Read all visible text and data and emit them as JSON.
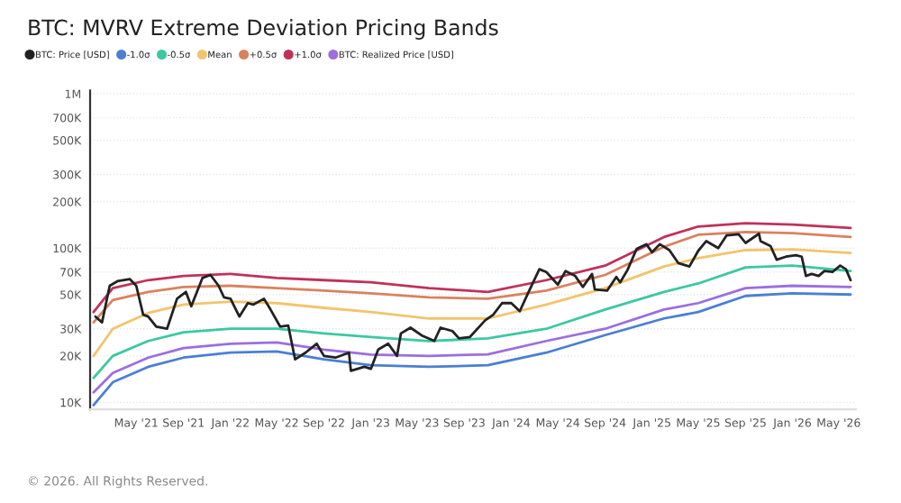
{
  "chart_data": {
    "type": "line",
    "title": "BTC: MVRV Extreme Deviation Pricing Bands",
    "annotations": [
      "© 2026. All Rights Reserved."
    ],
    "log": "y",
    "grid": "y",
    "legend": "top left",
    "marker": "none",
    "line_style": "solid",
    "ylim": [
      9000,
      1050000
    ],
    "yticks": [
      {
        "value": 10000,
        "label": "10K"
      },
      {
        "value": 20000,
        "label": "20K"
      },
      {
        "value": 30000,
        "label": "30K"
      },
      {
        "value": 50000,
        "label": "50K"
      },
      {
        "value": 70000,
        "label": "70K"
      },
      {
        "value": 100000,
        "label": "100K"
      },
      {
        "value": 200000,
        "label": "200K"
      },
      {
        "value": 300000,
        "label": "300K"
      },
      {
        "value": 500000,
        "label": "500K"
      },
      {
        "value": 700000,
        "label": "700K"
      },
      {
        "value": 1000000,
        "label": "1M"
      }
    ],
    "xlim": [
      "2021-01-01",
      "2026-06-15"
    ],
    "xticks": [
      {
        "value": "2021-05-01",
        "label": "May '21"
      },
      {
        "value": "2021-09-01",
        "label": "Sep '21"
      },
      {
        "value": "2022-01-01",
        "label": "Jan '22"
      },
      {
        "value": "2022-05-01",
        "label": "May '22"
      },
      {
        "value": "2022-09-01",
        "label": "Sep '22"
      },
      {
        "value": "2023-01-01",
        "label": "Jan '23"
      },
      {
        "value": "2023-05-01",
        "label": "May '23"
      },
      {
        "value": "2023-09-01",
        "label": "Sep '23"
      },
      {
        "value": "2024-01-01",
        "label": "Jan '24"
      },
      {
        "value": "2024-05-01",
        "label": "May '24"
      },
      {
        "value": "2024-09-01",
        "label": "Sep '24"
      },
      {
        "value": "2025-01-01",
        "label": "Jan '25"
      },
      {
        "value": "2025-05-01",
        "label": "May '25"
      },
      {
        "value": "2025-09-01",
        "label": "Sep '25"
      },
      {
        "value": "2026-01-01",
        "label": "Jan '26"
      },
      {
        "value": "2026-05-01",
        "label": "May '26"
      }
    ],
    "x": [
      "2021-01-10",
      "2021-03-01",
      "2021-06-01",
      "2021-09-01",
      "2022-01-01",
      "2022-05-01",
      "2022-09-01",
      "2023-01-01",
      "2023-06-01",
      "2023-11-01",
      "2024-04-01",
      "2024-09-01",
      "2025-02-01",
      "2025-05-01",
      "2025-09-01",
      "2026-01-01",
      "2026-06-01"
    ],
    "series": [
      {
        "name": "BTC: Price [USD]",
        "color": "#222222",
        "x": [
          "2021-01-15",
          "2021-02-01",
          "2021-02-21",
          "2021-03-13",
          "2021-04-14",
          "2021-05-01",
          "2021-05-19",
          "2021-06-01",
          "2021-06-22",
          "2021-07-20",
          "2021-08-15",
          "2021-09-07",
          "2021-09-21",
          "2021-10-20",
          "2021-11-10",
          "2021-12-01",
          "2021-12-15",
          "2022-01-01",
          "2022-01-24",
          "2022-02-15",
          "2022-03-01",
          "2022-03-29",
          "2022-04-15",
          "2022-05-10",
          "2022-05-31",
          "2022-06-18",
          "2022-07-15",
          "2022-08-13",
          "2022-09-01",
          "2022-10-01",
          "2022-11-05",
          "2022-11-10",
          "2022-12-15",
          "2023-01-01",
          "2023-01-20",
          "2023-02-15",
          "2023-03-10",
          "2023-03-20",
          "2023-04-14",
          "2023-05-15",
          "2023-06-15",
          "2023-07-01",
          "2023-08-01",
          "2023-08-18",
          "2023-09-15",
          "2023-10-25",
          "2023-11-15",
          "2023-12-08",
          "2024-01-01",
          "2024-01-23",
          "2024-02-15",
          "2024-03-14",
          "2024-04-01",
          "2024-05-01",
          "2024-05-21",
          "2024-06-15",
          "2024-07-05",
          "2024-07-29",
          "2024-08-05",
          "2024-09-06",
          "2024-09-30",
          "2024-10-10",
          "2024-10-29",
          "2024-11-22",
          "2024-12-17",
          "2025-01-01",
          "2025-01-21",
          "2025-02-15",
          "2025-03-10",
          "2025-04-08",
          "2025-05-01",
          "2025-05-22",
          "2025-06-22",
          "2025-07-14",
          "2025-08-14",
          "2025-09-01",
          "2025-10-06",
          "2025-10-10",
          "2025-11-05",
          "2025-11-21",
          "2025-12-15",
          "2026-01-10",
          "2026-01-25",
          "2026-02-05",
          "2026-02-20",
          "2026-03-10",
          "2026-03-25",
          "2026-04-15",
          "2026-05-05",
          "2026-05-20",
          "2026-06-01"
        ],
        "values": [
          36000,
          33000,
          57000,
          61000,
          63000,
          57000,
          37000,
          36000,
          31000,
          30000,
          47000,
          52000,
          42000,
          64000,
          67000,
          57000,
          48000,
          47000,
          36000,
          44000,
          43000,
          47000,
          40000,
          31000,
          31500,
          19000,
          21000,
          24000,
          20000,
          19500,
          21000,
          16000,
          17000,
          16500,
          22000,
          24000,
          20000,
          28000,
          30500,
          27000,
          25000,
          30500,
          29000,
          26000,
          26500,
          34000,
          37000,
          44000,
          44000,
          39000,
          52000,
          73000,
          70000,
          58000,
          71000,
          66000,
          56000,
          68000,
          54000,
          53000,
          65000,
          60000,
          72000,
          99000,
          106000,
          94000,
          106000,
          97000,
          80000,
          76000,
          96000,
          111000,
          100000,
          121000,
          123000,
          108000,
          124000,
          111000,
          103000,
          84000,
          88000,
          90000,
          88000,
          66000,
          68000,
          66000,
          71000,
          70000,
          77000,
          73000,
          62000
        ]
      },
      {
        "name": "-1.0σ",
        "color": "#4a7fd4",
        "values": [
          9600,
          13500,
          17000,
          19500,
          21000,
          21400,
          19000,
          17400,
          17000,
          17400,
          21000,
          27300,
          35000,
          38500,
          49000,
          51000,
          50000
        ]
      },
      {
        "name": "-0.5σ",
        "color": "#3cc8a0",
        "values": [
          14400,
          20000,
          25000,
          28500,
          30000,
          30000,
          28000,
          26500,
          25000,
          26000,
          30000,
          40000,
          52000,
          59000,
          75000,
          77000,
          71000
        ]
      },
      {
        "name": "Mean",
        "color": "#f2c46d",
        "values": [
          20000,
          30000,
          38000,
          43000,
          45000,
          44000,
          41000,
          38500,
          35000,
          35000,
          43000,
          55000,
          76000,
          86000,
          97000,
          98000,
          93000
        ]
      },
      {
        "name": "+0.5σ",
        "color": "#d9825f",
        "values": [
          33000,
          46000,
          52000,
          56000,
          57000,
          55000,
          53000,
          51000,
          48000,
          47000,
          53000,
          67000,
          102000,
          122000,
          127000,
          125000,
          118000
        ]
      },
      {
        "name": "+1.0σ",
        "color": "#c0325a",
        "values": [
          38500,
          55000,
          62000,
          66000,
          68000,
          64000,
          62000,
          60000,
          55000,
          52000,
          62000,
          77000,
          118000,
          138000,
          145000,
          142000,
          135000
        ]
      },
      {
        "name": "BTC: Realized Price [USD]",
        "color": "#9b6fe0",
        "values": [
          11600,
          15500,
          19500,
          22500,
          24000,
          24500,
          22000,
          20400,
          20000,
          20500,
          25000,
          30000,
          40000,
          44000,
          55000,
          57000,
          56000
        ]
      }
    ]
  }
}
